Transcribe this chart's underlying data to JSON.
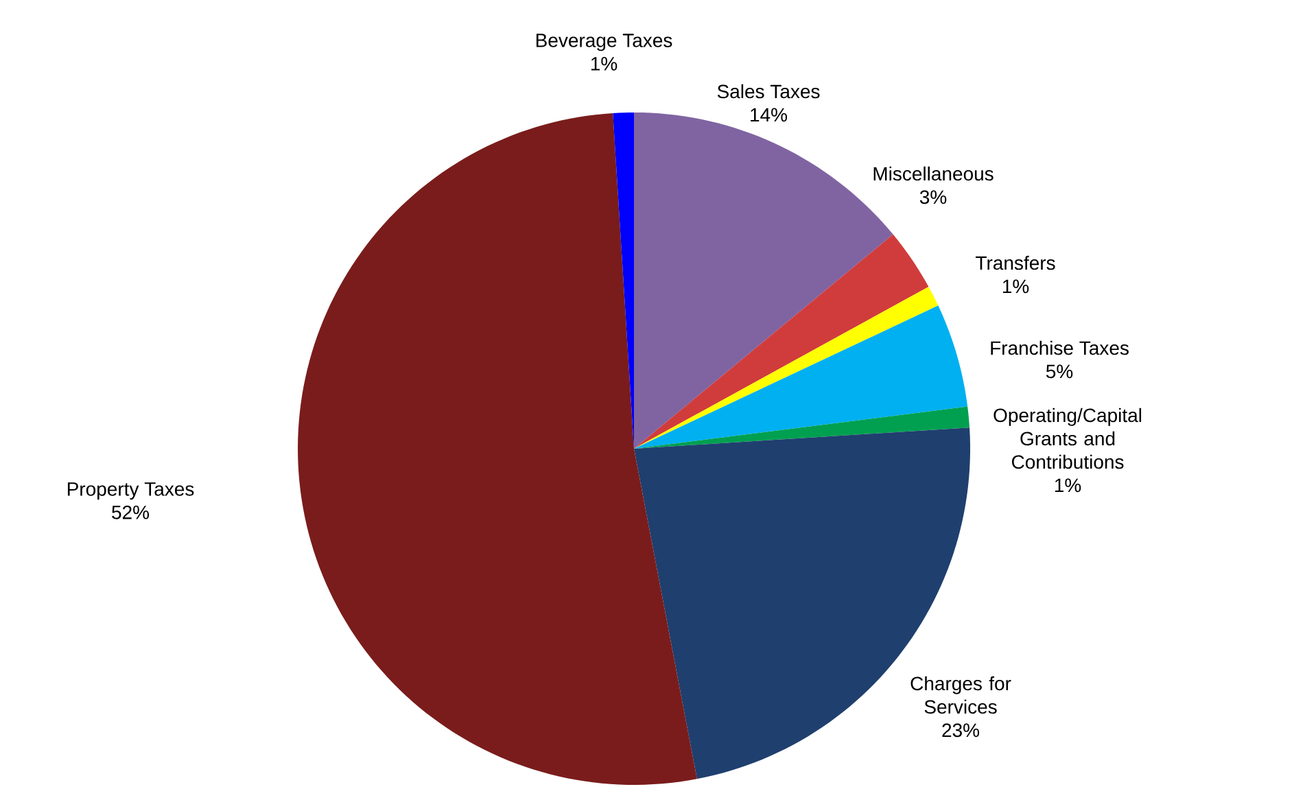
{
  "chart_data": {
    "type": "pie",
    "categories": [
      "Sales Taxes",
      "Miscellaneous",
      "Transfers",
      "Franchise Taxes",
      "Operating/Capital Grants and Contributions",
      "Charges for Services",
      "Property Taxes",
      "Beverage Taxes"
    ],
    "values": [
      14,
      3,
      1,
      5,
      1,
      23,
      52,
      1
    ],
    "value_labels": [
      "14%",
      "3%",
      "1%",
      "5%",
      "1%",
      "23%",
      "52%",
      "1%"
    ],
    "colors": [
      "#8064a2",
      "#d03c3c",
      "#ffff00",
      "#00b0f0",
      "#00a050",
      "#1f3f6e",
      "#7a1c1c",
      "#0000ff"
    ],
    "legend": false
  }
}
